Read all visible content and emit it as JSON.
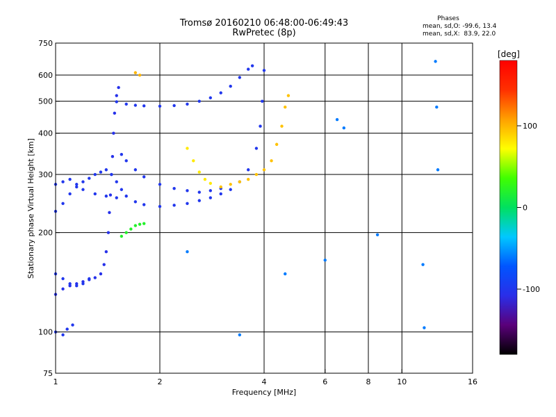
{
  "chart_data": {
    "type": "scatter",
    "title": "Tromsø 20160210 06:48:00-06:49:43",
    "subtitle": "RwPretec (8p)",
    "xlabel": "Frequency [MHz]",
    "ylabel": "Stationary phase Virtual Height [km]",
    "x_scale": "log",
    "y_scale": "log",
    "xlim": [
      1,
      16
    ],
    "ylim": [
      75,
      750
    ],
    "x_ticks": [
      1,
      2,
      4,
      6,
      8,
      10,
      16
    ],
    "y_ticks": [
      75,
      100,
      200,
      300,
      400,
      500,
      600,
      750
    ],
    "x_grid": [
      2,
      4,
      6,
      8,
      10
    ],
    "y_grid": [
      100,
      200,
      300,
      400,
      500,
      600
    ],
    "stats": {
      "header": "Phases",
      "line_o": "mean, sd,O: -99.6, 13.4",
      "line_x": "mean, sd,X:  83.9, 22.0"
    },
    "colorbar": {
      "label": "[deg]",
      "ticks": [
        100,
        0,
        -100
      ],
      "range": [
        -180,
        180
      ],
      "colors": [
        "#000000",
        "#5a007a",
        "#2a2ee8",
        "#0055ff",
        "#00c8ff",
        "#00e060",
        "#40ff00",
        "#ffff00",
        "#ffa000",
        "#ff3000",
        "#ff0000"
      ]
    },
    "series": [
      {
        "values": [
          [
            1.0,
            100
          ],
          [
            1.05,
            98
          ],
          [
            1.08,
            102
          ],
          [
            1.12,
            105
          ]
        ],
        "phase": -100
      },
      {
        "values": [
          [
            1.0,
            130
          ],
          [
            1.05,
            135
          ],
          [
            1.1,
            138
          ],
          [
            1.15,
            140
          ],
          [
            1.2,
            142
          ],
          [
            1.25,
            144
          ],
          [
            1.3,
            146
          ],
          [
            1.35,
            150
          ],
          [
            1.38,
            160
          ],
          [
            1.4,
            175
          ],
          [
            1.42,
            200
          ],
          [
            1.43,
            230
          ],
          [
            1.44,
            260
          ],
          [
            1.45,
            300
          ],
          [
            1.46,
            340
          ],
          [
            1.47,
            400
          ],
          [
            1.48,
            460
          ],
          [
            1.5,
            520
          ],
          [
            1.52,
            550
          ]
        ],
        "phase": -105
      },
      {
        "values": [
          [
            1.0,
            150
          ],
          [
            1.05,
            145
          ],
          [
            1.1,
            140
          ],
          [
            1.15,
            138
          ],
          [
            1.2,
            140
          ],
          [
            1.25,
            145
          ]
        ],
        "phase": -100
      },
      {
        "values": [
          [
            1.0,
            232
          ],
          [
            1.05,
            245
          ],
          [
            1.1,
            262
          ],
          [
            1.15,
            275
          ],
          [
            1.2,
            285
          ],
          [
            1.25,
            292
          ],
          [
            1.3,
            300
          ],
          [
            1.35,
            305
          ],
          [
            1.4,
            310
          ],
          [
            1.45,
            300
          ],
          [
            1.5,
            285
          ],
          [
            1.55,
            270
          ],
          [
            1.6,
            258
          ],
          [
            1.7,
            248
          ],
          [
            1.8,
            243
          ],
          [
            2.0,
            240
          ],
          [
            2.2,
            242
          ],
          [
            2.4,
            245
          ],
          [
            2.6,
            250
          ],
          [
            2.8,
            255
          ],
          [
            3.0,
            262
          ],
          [
            3.2,
            270
          ],
          [
            3.4,
            285
          ],
          [
            3.6,
            310
          ],
          [
            3.8,
            360
          ],
          [
            3.9,
            420
          ],
          [
            3.95,
            500
          ],
          [
            4.0,
            620
          ]
        ],
        "phase": -100
      },
      {
        "values": [
          [
            1.0,
            280
          ],
          [
            1.05,
            285
          ],
          [
            1.1,
            290
          ],
          [
            1.15,
            280
          ],
          [
            1.2,
            270
          ],
          [
            1.3,
            262
          ],
          [
            1.4,
            258
          ],
          [
            1.5,
            255
          ]
        ],
        "phase": -100
      },
      {
        "values": [
          [
            1.5,
            498
          ],
          [
            1.6,
            490
          ],
          [
            1.7,
            486
          ],
          [
            1.8,
            484
          ],
          [
            2.0,
            483
          ],
          [
            2.2,
            485
          ],
          [
            2.4,
            490
          ],
          [
            2.6,
            500
          ],
          [
            2.8,
            512
          ],
          [
            3.0,
            530
          ],
          [
            3.2,
            555
          ],
          [
            3.4,
            590
          ],
          [
            3.6,
            625
          ],
          [
            3.7,
            640
          ]
        ],
        "phase": -100
      },
      {
        "values": [
          [
            1.55,
            345
          ],
          [
            1.6,
            330
          ],
          [
            1.7,
            310
          ],
          [
            1.8,
            295
          ],
          [
            2.0,
            280
          ],
          [
            2.2,
            272
          ],
          [
            2.4,
            268
          ],
          [
            2.6,
            265
          ],
          [
            2.8,
            268
          ],
          [
            3.0,
            272
          ]
        ],
        "phase": -100
      },
      {
        "values": [
          [
            3.0,
            275
          ],
          [
            3.2,
            280
          ],
          [
            3.4,
            285
          ],
          [
            3.6,
            290
          ],
          [
            3.8,
            300
          ],
          [
            4.0,
            310
          ],
          [
            4.2,
            330
          ],
          [
            4.35,
            370
          ],
          [
            4.5,
            420
          ],
          [
            4.6,
            480
          ],
          [
            4.7,
            520
          ]
        ],
        "phase": 95
      },
      {
        "values": [
          [
            2.4,
            360
          ],
          [
            2.5,
            330
          ],
          [
            2.6,
            305
          ],
          [
            2.7,
            290
          ],
          [
            2.8,
            282
          ]
        ],
        "phase": 80
      },
      {
        "values": [
          [
            1.55,
            195
          ],
          [
            1.6,
            200
          ],
          [
            1.65,
            205
          ],
          [
            1.7,
            210
          ],
          [
            1.75,
            212
          ],
          [
            1.8,
            213
          ]
        ],
        "phase": 20
      },
      {
        "values": [
          [
            1.7,
            610
          ],
          [
            1.75,
            600
          ]
        ],
        "phase": 100
      },
      {
        "values": [
          [
            12.5,
            660
          ],
          [
            12.6,
            480
          ],
          [
            12.7,
            310
          ],
          [
            11.5,
            160
          ],
          [
            11.6,
            103
          ],
          [
            8.5,
            197
          ],
          [
            6.0,
            165
          ],
          [
            6.5,
            440
          ],
          [
            6.8,
            415
          ],
          [
            4.6,
            150
          ],
          [
            3.4,
            98
          ],
          [
            2.4,
            175
          ]
        ],
        "phase": -60
      }
    ]
  }
}
